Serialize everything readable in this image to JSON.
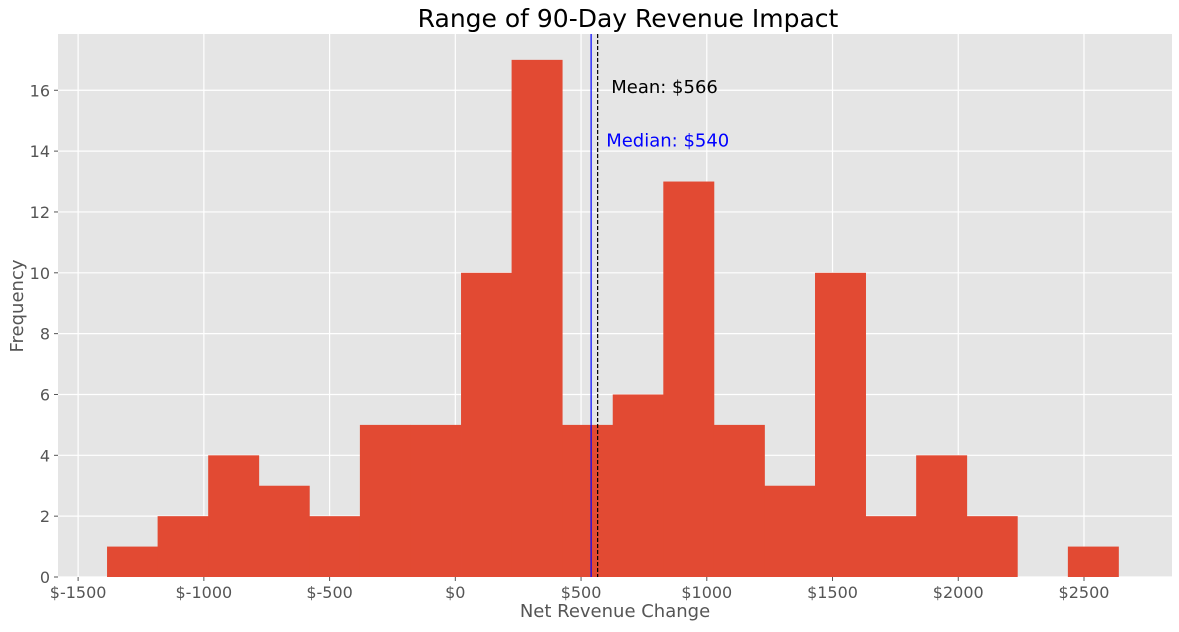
{
  "chart_data": {
    "type": "bar",
    "subtype": "histogram",
    "title": "Range of 90-Day Revenue Impact",
    "xlabel": "Net Revenue Change",
    "ylabel": "Frequency",
    "xlim": [
      -1580,
      2850
    ],
    "ylim": [
      0,
      17.85
    ],
    "x_ticks": [
      -1500,
      -1000,
      -500,
      0,
      500,
      1000,
      1500,
      2000,
      2500
    ],
    "x_tick_labels": [
      "$-1500",
      "$-1000",
      "$-500",
      "$0",
      "$500",
      "$1000",
      "$1500",
      "$2000",
      "$2500"
    ],
    "y_ticks": [
      0,
      2,
      4,
      6,
      8,
      10,
      12,
      14,
      16
    ],
    "y_tick_labels": [
      "0",
      "2",
      "4",
      "6",
      "8",
      "10",
      "12",
      "14",
      "16"
    ],
    "grid": true,
    "bin_start": -1385,
    "bin_width": 201.1,
    "counts": [
      1,
      2,
      4,
      3,
      2,
      5,
      5,
      10,
      17,
      5,
      6,
      13,
      5,
      3,
      10,
      2,
      4,
      2,
      0,
      1
    ],
    "bar_color": "#E24A33",
    "background_color": "#E5E5E5",
    "lines": [
      {
        "name": "median",
        "value": 540,
        "color": "#0000FF",
        "style": "solid",
        "label": "Median: $540"
      },
      {
        "name": "mean",
        "value": 566,
        "color": "#000000",
        "style": "dashed",
        "label": "Mean: $566"
      }
    ],
    "annotations": [
      {
        "text": "Mean: $566",
        "color": "#000000",
        "x": 620,
        "y": 16.1
      },
      {
        "text": "Median: $540",
        "color": "#0000FF",
        "x": 600,
        "y": 14.35
      }
    ]
  }
}
